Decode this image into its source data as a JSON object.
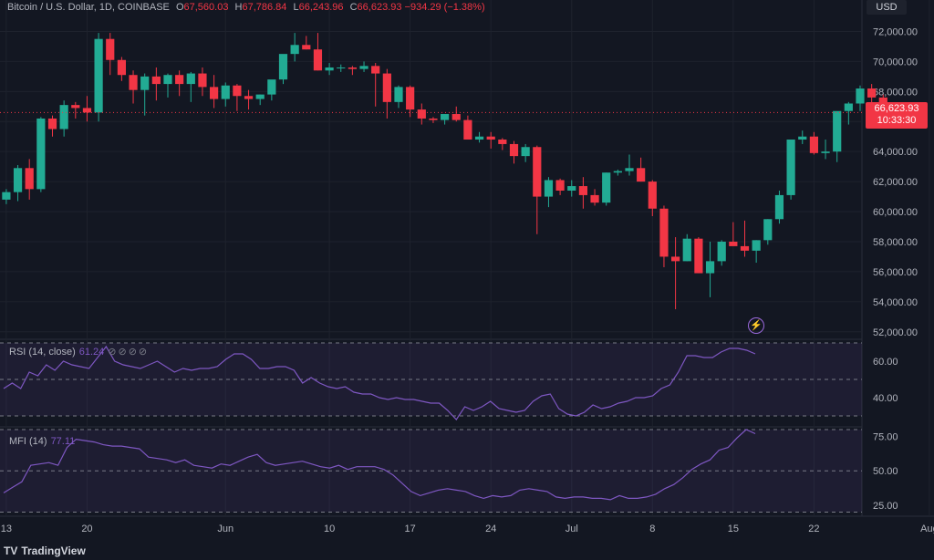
{
  "header": {
    "symbol": "Bitcoin / U.S. Dollar, 1D, COINBASE",
    "open_label": "O",
    "open": "67,560.03",
    "high_label": "H",
    "high": "67,786.84",
    "low_label": "L",
    "low": "66,243.96",
    "close_label": "C",
    "close": "66,623.93",
    "change": "−934.29 (−1.38%)"
  },
  "currency": "USD",
  "last_price": {
    "value": "66,623.93",
    "countdown": "10:33:30"
  },
  "colors": {
    "up": "#22ab94",
    "down": "#f23645",
    "indicator": "#7e57c2",
    "background": "#131722"
  },
  "icons": {
    "alert": "bolt-icon",
    "logo": "tradingview-logo"
  },
  "rsi": {
    "label": "RSI (14, close)",
    "value": "61.24"
  },
  "mfi": {
    "label": "MFI (14)",
    "value": "77.11"
  },
  "brand": {
    "logo": "TV",
    "name": "TradingView"
  },
  "chart_data": [
    {
      "type": "candlestick",
      "title": "Bitcoin / U.S. Dollar, 1D, COINBASE",
      "ylim": [
        51500,
        73000
      ],
      "y_ticks": [
        "72,000.00",
        "70,000.00",
        "68,000.00",
        "66,000.00",
        "64,000.00",
        "62,000.00",
        "60,000.00",
        "58,000.00",
        "56,000.00",
        "54,000.00",
        "52,000.00"
      ],
      "y_tick_values": [
        72000,
        70000,
        68000,
        66000,
        64000,
        62000,
        60000,
        58000,
        56000,
        54000,
        52000
      ],
      "x_ticks": [
        "13",
        "20",
        "Jun",
        "10",
        "17",
        "24",
        "Jul",
        "8",
        "15",
        "22",
        "Aug"
      ],
      "x_tick_days": [
        0,
        7,
        19,
        28,
        35,
        42,
        49,
        56,
        63,
        70,
        80
      ],
      "grid": true,
      "first_date": "May 13",
      "candles": [
        [
          60800,
          61500,
          60500,
          61300
        ],
        [
          61300,
          63100,
          60700,
          62900
        ],
        [
          62900,
          63500,
          60800,
          61500
        ],
        [
          61500,
          66300,
          61300,
          66200
        ],
        [
          66200,
          66400,
          65000,
          65500
        ],
        [
          65500,
          67400,
          65000,
          67100
        ],
        [
          67100,
          67300,
          66200,
          66900
        ],
        [
          66900,
          67700,
          66000,
          66600
        ],
        [
          66600,
          71900,
          66000,
          71500
        ],
        [
          71500,
          71900,
          69100,
          70100
        ],
        [
          70100,
          70300,
          68700,
          69100
        ],
        [
          69100,
          69400,
          67200,
          68100
        ],
        [
          68100,
          69200,
          66400,
          69000
        ],
        [
          69000,
          69600,
          67400,
          68500
        ],
        [
          68500,
          69200,
          67600,
          69100
        ],
        [
          69100,
          69400,
          67700,
          68500
        ],
        [
          68500,
          69300,
          67300,
          69200
        ],
        [
          69200,
          69600,
          67700,
          68300
        ],
        [
          68300,
          69100,
          66900,
          67500
        ],
        [
          67500,
          68600,
          67000,
          68400
        ],
        [
          68400,
          68500,
          66700,
          67700
        ],
        [
          67700,
          68100,
          66800,
          67500
        ],
        [
          67500,
          67800,
          67100,
          67800
        ],
        [
          67800,
          68600,
          67400,
          68800
        ],
        [
          68800,
          70300,
          68500,
          70500
        ],
        [
          70500,
          71900,
          70000,
          71100
        ],
        [
          71100,
          71700,
          70800,
          70800
        ],
        [
          70800,
          71900,
          69400,
          69400
        ],
        [
          69400,
          69900,
          69100,
          69600
        ],
        [
          69600,
          69800,
          69300,
          69600
        ],
        [
          69600,
          69700,
          69100,
          69500
        ],
        [
          69500,
          70000,
          69300,
          69700
        ],
        [
          69700,
          69900,
          67000,
          69200
        ],
        [
          69200,
          69500,
          66200,
          67300
        ],
        [
          67300,
          68400,
          66900,
          68300
        ],
        [
          68300,
          68400,
          66300,
          66800
        ],
        [
          66800,
          67200,
          65800,
          66200
        ],
        [
          66200,
          66300,
          65900,
          66100
        ],
        [
          66100,
          66400,
          65800,
          66500
        ],
        [
          66500,
          67000,
          66000,
          66100
        ],
        [
          66100,
          66400,
          64900,
          64800
        ],
        [
          64800,
          65300,
          64600,
          65000
        ],
        [
          65000,
          65300,
          64200,
          64800
        ],
        [
          64800,
          64900,
          64100,
          64500
        ],
        [
          64500,
          64700,
          63200,
          63700
        ],
        [
          63700,
          64500,
          63300,
          64300
        ],
        [
          64300,
          64400,
          58500,
          61000
        ],
        [
          61000,
          62300,
          60300,
          62100
        ],
        [
          62100,
          62200,
          61100,
          61400
        ],
        [
          61400,
          62100,
          61000,
          61700
        ],
        [
          61700,
          62300,
          60200,
          61100
        ],
        [
          61100,
          61500,
          60400,
          60600
        ],
        [
          60600,
          62600,
          60400,
          62600
        ],
        [
          62600,
          62800,
          62400,
          62700
        ],
        [
          62700,
          63800,
          62400,
          62900
        ],
        [
          62900,
          63600,
          62000,
          62000
        ],
        [
          62000,
          62100,
          59700,
          60200
        ],
        [
          60200,
          60400,
          56300,
          57000
        ],
        [
          57000,
          58300,
          53500,
          56700
        ],
        [
          56700,
          58500,
          56700,
          58200
        ],
        [
          58200,
          58300,
          55900,
          55900
        ],
        [
          55900,
          58000,
          54300,
          56700
        ],
        [
          56700,
          58100,
          56400,
          58000
        ],
        [
          58000,
          59300,
          57900,
          57700
        ],
        [
          57700,
          59400,
          57000,
          57400
        ],
        [
          57400,
          58100,
          56600,
          58100
        ],
        [
          58100,
          59500,
          57800,
          59500
        ],
        [
          59500,
          61400,
          59200,
          61100
        ],
        [
          61100,
          64700,
          60800,
          64800
        ],
        [
          64800,
          65400,
          64500,
          65000
        ],
        [
          65000,
          65300,
          63800,
          63900
        ],
        [
          63900,
          64800,
          63500,
          64000
        ],
        [
          64000,
          66600,
          63300,
          66700
        ],
        [
          66700,
          67300,
          65800,
          67200
        ],
        [
          67200,
          68400,
          66700,
          68200
        ],
        [
          68200,
          68500,
          67000,
          67600
        ],
        [
          67600,
          67800,
          66600,
          66600
        ]
      ]
    },
    {
      "type": "line",
      "title": "RSI (14, close)",
      "ylim": [
        24,
        72
      ],
      "y_ticks": [
        "60.00",
        "40.00"
      ],
      "y_tick_values": [
        60,
        40
      ],
      "bands": [
        70,
        50,
        30
      ],
      "series": [
        {
          "values": [
            45,
            48,
            45,
            54,
            52,
            58,
            55,
            60,
            58,
            57,
            56,
            62,
            68,
            60,
            58,
            57,
            56,
            58,
            60,
            57,
            54,
            56,
            55,
            56,
            56,
            57,
            61,
            64,
            64,
            61,
            56,
            56,
            57,
            57,
            55,
            48,
            51,
            48,
            46,
            45,
            46,
            43,
            42,
            42,
            40,
            39,
            40,
            39,
            39,
            38,
            37,
            37,
            33,
            28,
            35,
            33,
            35,
            38,
            34,
            33,
            32,
            33,
            38,
            41,
            42,
            34,
            31,
            30,
            32,
            36,
            34,
            35,
            37,
            38,
            40,
            40,
            41,
            45,
            47,
            54,
            63,
            63,
            62,
            62,
            65,
            67,
            67,
            66,
            64
          ]
        }
      ]
    },
    {
      "type": "line",
      "title": "MFI (14)",
      "ylim": [
        17,
        82
      ],
      "y_ticks": [
        "75.00",
        "50.00",
        "25.00"
      ],
      "y_tick_values": [
        75,
        50,
        25
      ],
      "bands": [
        80,
        50,
        20
      ],
      "series": [
        {
          "values": [
            34,
            38,
            42,
            54,
            55,
            56,
            54,
            67,
            73,
            72,
            71,
            69,
            68,
            68,
            67,
            66,
            60,
            59,
            58,
            56,
            58,
            54,
            53,
            52,
            55,
            54,
            57,
            60,
            62,
            56,
            54,
            55,
            56,
            57,
            55,
            53,
            52,
            54,
            51,
            53,
            53,
            53,
            51,
            47,
            41,
            35,
            32,
            34,
            36,
            37,
            36,
            35,
            32,
            30,
            32,
            31,
            32,
            36,
            37,
            36,
            35,
            31,
            30,
            31,
            31,
            30,
            30,
            29,
            32,
            30,
            30,
            31,
            33,
            37,
            40,
            45,
            51,
            55,
            58,
            65,
            67,
            74,
            80,
            77
          ]
        }
      ]
    }
  ]
}
